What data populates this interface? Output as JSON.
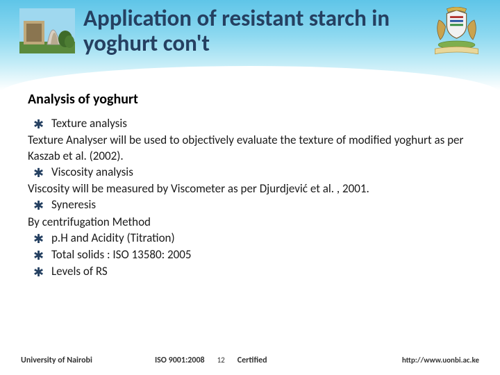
{
  "header": {
    "title": "Application of resistant starch in yoghurt con't",
    "title_color": "#254061",
    "gradient_top": "#5fc5e8",
    "gradient_bottom": "#ffffff"
  },
  "logos": {
    "left_name": "university-tower-photo",
    "right_name": "coat-of-arms"
  },
  "content": {
    "subheading": "Analysis of yoghurt",
    "items": [
      {
        "type": "bullet",
        "text": "Texture analysis"
      },
      {
        "type": "body",
        "text": "Texture Analyser will be used to objectively evaluate the texture of modified yoghurt as per Kaszab et al. (2002)."
      },
      {
        "type": "bullet",
        "text": "Viscosity analysis"
      },
      {
        "type": "body",
        "text": "Viscosity will be measured by Viscometer as per Djurdjević et al. , 2001."
      },
      {
        "type": "bullet",
        "text": "Syneresis"
      },
      {
        "type": "body",
        "text": "By centrifugation Method"
      },
      {
        "type": "bullet",
        "text": "p.H and Acidity (Titration)"
      },
      {
        "type": "bullet",
        "text": "Total  solids : ISO 13580: 2005"
      },
      {
        "type": "bullet",
        "text": "Levels of RS"
      }
    ],
    "bullet_glyph": "✱",
    "text_color": "#1a1a1a"
  },
  "footer": {
    "university": "University of Nairobi",
    "iso": "ISO 9001:2008",
    "page": "12",
    "certified": "Certified",
    "url": "http://www.uonbi.ac.ke"
  }
}
